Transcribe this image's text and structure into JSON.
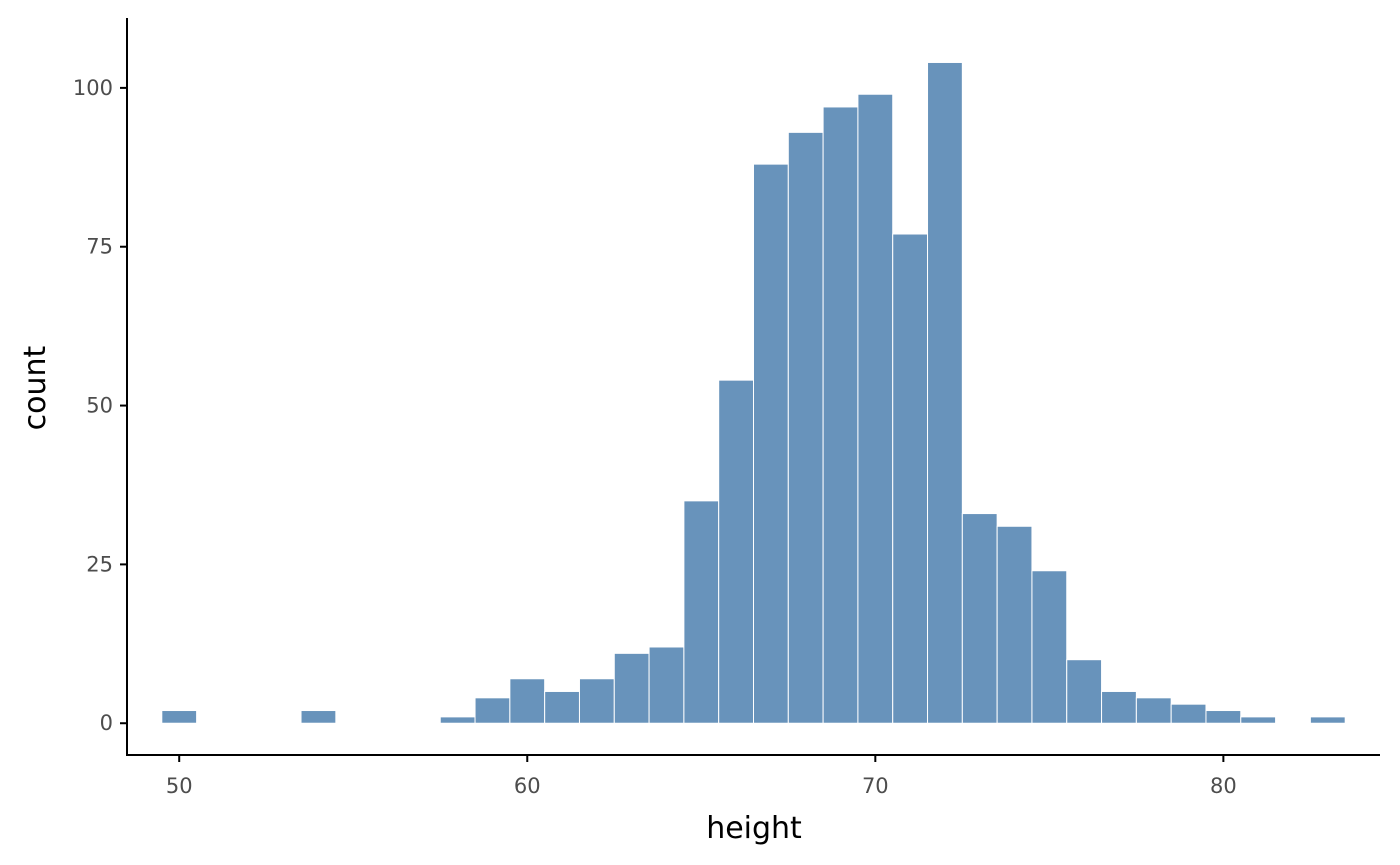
{
  "chart_data": {
    "type": "bar",
    "title": "",
    "xlabel": "height",
    "ylabel": "count",
    "bar_color": "#6893bb",
    "bar_edge_color": "#ffffff",
    "xlim": [
      48.5,
      84.5
    ],
    "ylim": [
      -5,
      111
    ],
    "xticks": [
      50,
      60,
      70,
      80
    ],
    "yticks": [
      0,
      25,
      50,
      75,
      100
    ],
    "grid": false,
    "bin_width": 1,
    "bin_starts": [
      49.5,
      53.5,
      57.5,
      58.5,
      59.5,
      60.5,
      61.5,
      62.5,
      63.5,
      64.5,
      65.5,
      66.5,
      67.5,
      68.5,
      69.5,
      70.5,
      71.5,
      72.5,
      73.5,
      74.5,
      75.5,
      76.5,
      77.5,
      78.5,
      79.5,
      80.5,
      82.5
    ],
    "values": [
      2,
      2,
      1,
      4,
      7,
      5,
      7,
      11,
      12,
      35,
      54,
      88,
      93,
      97,
      99,
      77,
      104,
      33,
      31,
      24,
      10,
      5,
      4,
      3,
      2,
      1,
      1
    ]
  }
}
